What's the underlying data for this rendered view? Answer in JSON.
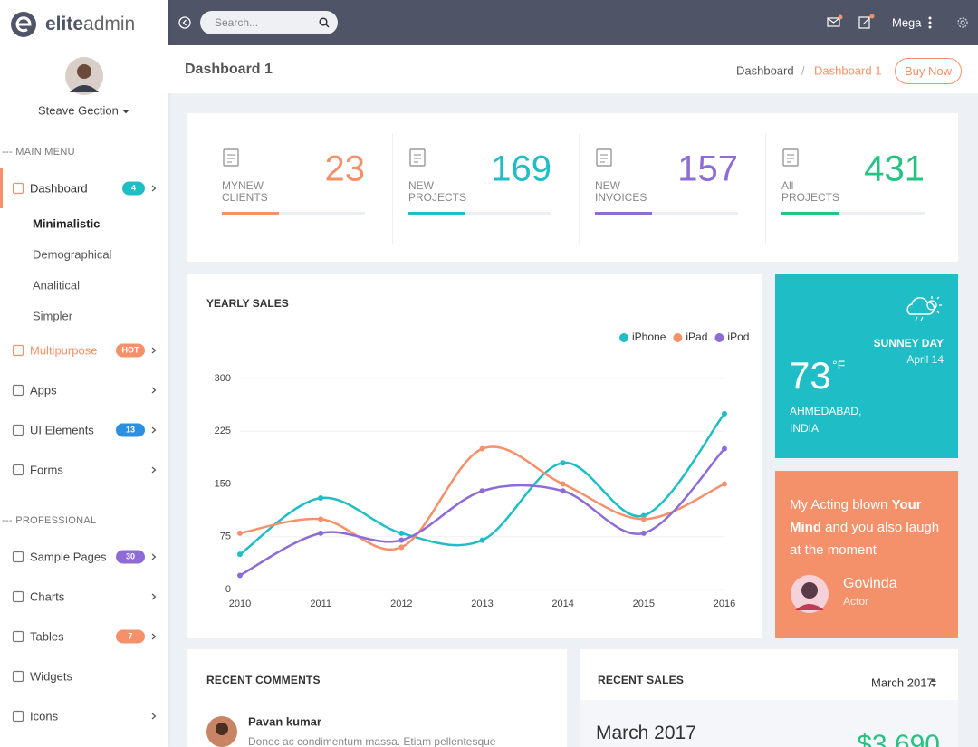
{
  "brand": {
    "bold": "elite",
    "light": "admin"
  },
  "topbar": {
    "search_placeholder": "Search...",
    "user": "Mega"
  },
  "sidebar": {
    "user": "Steave Gection",
    "sections": [
      {
        "title": "--- MAIN MENU",
        "items": [
          {
            "label": "Dashboard",
            "badge": 4,
            "badge_color": "#1fbdc6",
            "active": true,
            "children": [
              "Minimalistic",
              "Demographical",
              "Analitical",
              "Simpler"
            ]
          },
          {
            "label": "Multipurpose",
            "badge": "HOT",
            "badge_color": "#f4916a",
            "highlight": "#f4916a"
          },
          {
            "label": "Apps"
          },
          {
            "label": "UI Elements",
            "badge": 13,
            "badge_color": "#2d8fe0"
          },
          {
            "label": "Forms"
          }
        ]
      },
      {
        "title": "--- PROFESSIONAL",
        "items": [
          {
            "label": "Sample Pages",
            "badge": 30,
            "badge_color": "#8e6cd6"
          },
          {
            "label": "Charts"
          },
          {
            "label": "Tables",
            "badge": 7,
            "badge_color": "#f4916a"
          },
          {
            "label": "Widgets"
          },
          {
            "label": "Icons"
          }
        ]
      }
    ]
  },
  "page": {
    "title": "Dashboard 1",
    "breadcrumb": [
      "Dashboard",
      "Dashboard 1"
    ],
    "separator": "/",
    "button": "Buy Now"
  },
  "stats": [
    {
      "label": "MYNEW CLIENTS",
      "value": 23,
      "color": "#f4916a"
    },
    {
      "label": "NEW PROJECTS",
      "value": 169,
      "color": "#1fbdc6"
    },
    {
      "label": "NEW INVOICES",
      "value": 157,
      "color": "#8e6cd6"
    },
    {
      "label": "All PROJECTS",
      "value": 431,
      "color": "#26c281"
    }
  ],
  "chart_data": {
    "type": "line",
    "title": "YEARLY SALES",
    "categories": [
      "2010",
      "2011",
      "2012",
      "2013",
      "2014",
      "2015",
      "2016"
    ],
    "series": [
      {
        "name": "iPhone",
        "color": "#1fbdc6",
        "values": [
          50,
          130,
          80,
          70,
          180,
          105,
          250
        ]
      },
      {
        "name": "iPad",
        "color": "#f4916a",
        "values": [
          80,
          100,
          60,
          200,
          150,
          100,
          150
        ]
      },
      {
        "name": "iPod",
        "color": "#8e6cd6",
        "values": [
          20,
          80,
          70,
          140,
          140,
          80,
          200
        ]
      }
    ],
    "ylim": [
      0,
      300
    ],
    "yticks": [
      0,
      75,
      150,
      225,
      300
    ],
    "grid": true,
    "legend": "top-right"
  },
  "weather": {
    "condition": "SUNNEY DAY",
    "date": "April 14",
    "temperature": "73",
    "unit": "°F",
    "location": "AHMEDABAD, INDIA"
  },
  "quote": {
    "parts": [
      "My Acting blown ",
      "Your Mind",
      " and you also laugh at the moment"
    ],
    "name": "Govinda",
    "role": "Actor"
  },
  "recent_comments": {
    "title": "RECENT COMMENTS",
    "items": [
      {
        "name": "Pavan kumar",
        "text": "Donec ac condimentum massa. Etiam pellentesque"
      }
    ]
  },
  "recent_sales": {
    "title": "RECENT SALES",
    "period": "March 2017",
    "heading": "March 2017",
    "amount": "$3,690"
  }
}
